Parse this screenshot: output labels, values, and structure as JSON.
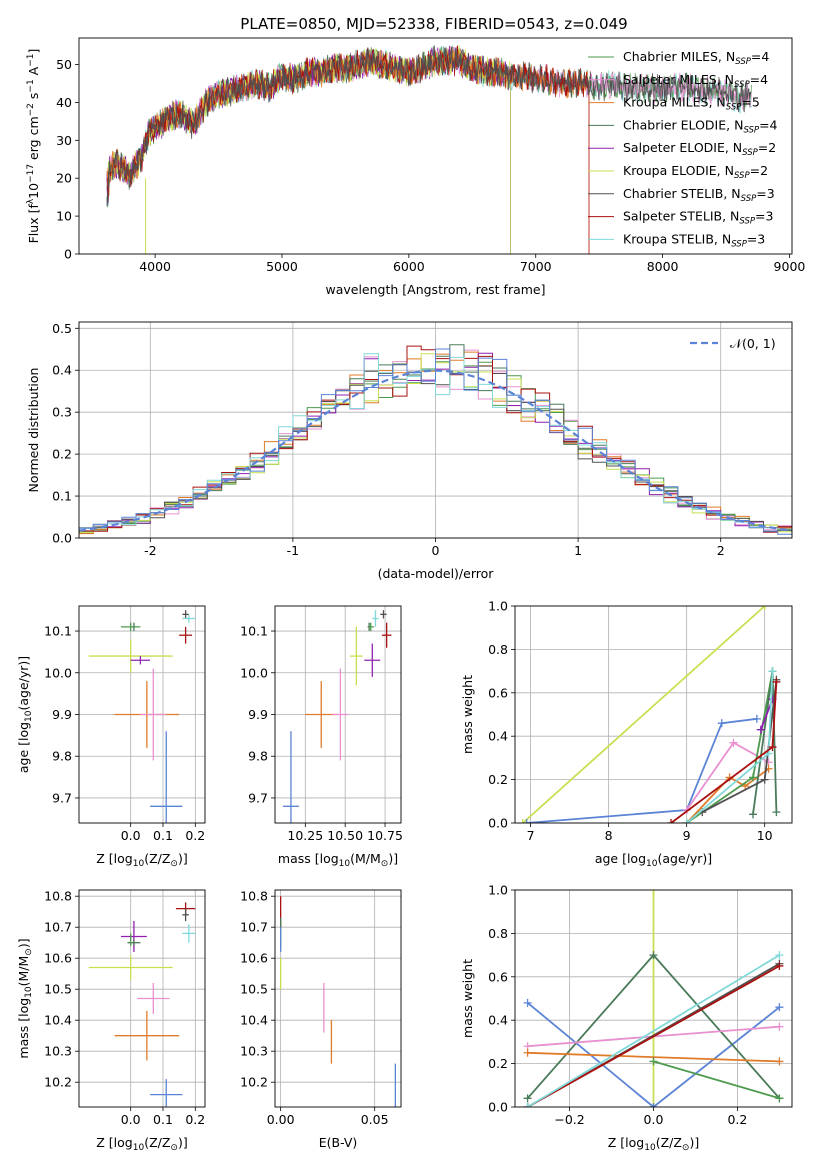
{
  "title": "PLATE=0850, MJD=52338, FIBERID=0543, z=0.049",
  "colors": {
    "chabrier_miles": "#4e9a4e",
    "salpeter_miles": "#e890d0",
    "kroupa_miles": "#e07b2a",
    "chabrier_elodie": "#4a7a5a",
    "salpeter_elodie": "#9020b0",
    "kroupa_elodie": "#c8e050",
    "chabrier_stelib": "#505050",
    "salpeter_stelib": "#aa1010",
    "kroupa_stelib": "#80d8d8",
    "blue": "#5b84d6",
    "gaussian": "#5b84d6",
    "grid": "#b0b0b0"
  },
  "chart_data": [
    {
      "id": "spectrum",
      "type": "line",
      "xlabel": "wavelength [Angstrom, rest frame]",
      "ylabel_parts": [
        "Flux [f",
        "λ",
        "10",
        "−17",
        " erg cm",
        "−2",
        " s",
        "−1",
        " A",
        "−1",
        "]"
      ],
      "xlim": [
        3400,
        9020
      ],
      "ylim": [
        0,
        57
      ],
      "xticks": [
        4000,
        5000,
        6000,
        7000,
        8000,
        9000
      ],
      "yticks": [
        0,
        10,
        20,
        30,
        40,
        50
      ],
      "grid": false,
      "legend_position": "top-right",
      "continuum": {
        "x": [
          3620,
          3700,
          3800,
          3900,
          3950,
          4000,
          4100,
          4200,
          4300,
          4400,
          4500,
          4600,
          4700,
          4800,
          4900,
          5000,
          5100,
          5200,
          5300,
          5400,
          5500,
          5600,
          5700,
          5800,
          5900,
          6000,
          6100,
          6200,
          6300,
          6400,
          6500,
          6600,
          6700,
          6800,
          6900,
          7000,
          7100,
          7200,
          7300,
          7400,
          7500,
          7600,
          7700,
          7800,
          7900,
          8000,
          8100,
          8200,
          8300,
          8400,
          8500,
          8600,
          8700
        ],
        "y": [
          22,
          24,
          21,
          26,
          32,
          33,
          36,
          37,
          34,
          40,
          42,
          43,
          44,
          45,
          44,
          47,
          46,
          48,
          48,
          49,
          49,
          50,
          51,
          50,
          49,
          48,
          49,
          51,
          51,
          51,
          49,
          48,
          48,
          47,
          47,
          46,
          46,
          45,
          45,
          45,
          44,
          45,
          44,
          44,
          44,
          43,
          44,
          44,
          43,
          43,
          43,
          41,
          42
        ]
      },
      "legend": [
        {
          "model": "Chabrier MILES",
          "n": "4",
          "color_key": "chabrier_miles",
          "end": 8700
        },
        {
          "model": "Salpeter MILES",
          "n": "4",
          "color_key": "salpeter_miles",
          "end": 8700
        },
        {
          "model": "Kroupa MILES",
          "n": "5",
          "color_key": "kroupa_miles",
          "end": 7420
        },
        {
          "model": "Chabrier ELODIE",
          "n": "4",
          "color_key": "chabrier_elodie",
          "end": 6800
        },
        {
          "model": "Salpeter ELODIE",
          "n": "2",
          "color_key": "salpeter_elodie",
          "end": 6800
        },
        {
          "model": "Kroupa ELODIE",
          "n": "2",
          "color_key": "kroupa_elodie",
          "end": 6800
        },
        {
          "model": "Chabrier STELIB",
          "n": "3",
          "color_key": "chabrier_stelib",
          "end": 8700
        },
        {
          "model": "Salpeter STELIB",
          "n": "3",
          "color_key": "salpeter_stelib",
          "end": 7420
        },
        {
          "model": "Kroupa STELIB",
          "n": "3",
          "color_key": "kroupa_stelib",
          "end": 8700
        }
      ]
    },
    {
      "id": "residuals",
      "type": "histogram",
      "xlabel": "(data-model)/error",
      "ylabel": "Normed distribution",
      "xlim": [
        -2.5,
        2.5
      ],
      "ylim": [
        0,
        0.515
      ],
      "xticks": [
        -2,
        -1,
        0,
        1,
        2
      ],
      "yticks": [
        0.0,
        0.1,
        0.2,
        0.3,
        0.4,
        0.5
      ],
      "grid": true,
      "bin_width": 0.1,
      "legend_position": "top-right",
      "gaussian_label": "𝒩(0, 1)",
      "series_color_keys": [
        "chabrier_miles",
        "salpeter_miles",
        "kroupa_miles",
        "chabrier_elodie",
        "salpeter_elodie",
        "kroupa_elodie",
        "chabrier_stelib",
        "salpeter_stelib",
        "kroupa_stelib",
        "blue"
      ]
    },
    {
      "id": "age_vs_Z",
      "type": "scatter",
      "xlabel_parts": [
        "Z [log",
        "10",
        "(Z/Z",
        "⊙",
        ")]"
      ],
      "ylabel_parts": [
        "age  [log",
        "10",
        "(age/yr)]"
      ],
      "xlim": [
        -0.16,
        0.23
      ],
      "ylim": [
        9.64,
        10.16
      ],
      "xticks": [
        0.0,
        0.1,
        0.2
      ],
      "yticks": [
        9.7,
        9.8,
        9.9,
        10.0,
        10.1
      ],
      "grid": true,
      "points": [
        {
          "x": 0.0,
          "y": 10.11,
          "xerr": 0.03,
          "yerr": 0.01,
          "color_key": "chabrier_miles"
        },
        {
          "x": 0.01,
          "y": 10.11,
          "xerr": 0.0,
          "yerr": 0.01,
          "color_key": "chabrier_elodie"
        },
        {
          "x": 0.0,
          "y": 10.04,
          "xerr": 0.13,
          "yerr": 0.04,
          "color_key": "kroupa_elodie"
        },
        {
          "x": 0.03,
          "y": 10.03,
          "xerr": 0.03,
          "yerr": 0.01,
          "color_key": "salpeter_elodie"
        },
        {
          "x": 0.17,
          "y": 10.14,
          "xerr": 0.01,
          "yerr": 0.01,
          "color_key": "chabrier_stelib"
        },
        {
          "x": 0.18,
          "y": 10.13,
          "xerr": 0.02,
          "yerr": 0.01,
          "color_key": "kroupa_stelib"
        },
        {
          "x": 0.17,
          "y": 10.09,
          "xerr": 0.02,
          "yerr": 0.02,
          "color_key": "salpeter_stelib"
        },
        {
          "x": 0.05,
          "y": 9.9,
          "xerr": 0.1,
          "yerr": 0.08,
          "color_key": "kroupa_miles"
        },
        {
          "x": 0.07,
          "y": 9.9,
          "xerr": 0.04,
          "yerr": 0.11,
          "color_key": "salpeter_miles"
        },
        {
          "x": 0.11,
          "y": 9.68,
          "xerr": 0.05,
          "yerr": 0.18,
          "color_key": "blue"
        }
      ]
    },
    {
      "id": "age_vs_mass",
      "type": "scatter",
      "xlabel_parts": [
        "mass [log",
        "10",
        "(M/M",
        "⊙",
        ")]"
      ],
      "xlim": [
        10.06,
        10.85
      ],
      "ylim": [
        9.64,
        10.16
      ],
      "xticks": [
        10.25,
        10.5,
        10.75
      ],
      "xtick_labels": [
        "10.25",
        "10.50",
        "10.75"
      ],
      "yticks": [
        9.7,
        9.8,
        9.9,
        10.0,
        10.1
      ],
      "grid": true,
      "points": [
        {
          "x": 10.66,
          "y": 10.11,
          "xerr": 0.02,
          "yerr": 0.01,
          "color_key": "chabrier_miles"
        },
        {
          "x": 10.65,
          "y": 10.11,
          "xerr": 0.0,
          "yerr": 0.01,
          "color_key": "chabrier_elodie"
        },
        {
          "x": 10.57,
          "y": 10.04,
          "xerr": 0.04,
          "yerr": 0.07,
          "color_key": "kroupa_elodie"
        },
        {
          "x": 10.67,
          "y": 10.03,
          "xerr": 0.05,
          "yerr": 0.04,
          "color_key": "salpeter_elodie"
        },
        {
          "x": 10.74,
          "y": 10.14,
          "xerr": 0.02,
          "yerr": 0.01,
          "color_key": "chabrier_stelib"
        },
        {
          "x": 10.69,
          "y": 10.13,
          "xerr": 0.02,
          "yerr": 0.02,
          "color_key": "kroupa_stelib"
        },
        {
          "x": 10.76,
          "y": 10.09,
          "xerr": 0.03,
          "yerr": 0.03,
          "color_key": "salpeter_stelib"
        },
        {
          "x": 10.35,
          "y": 9.9,
          "xerr": 0.1,
          "yerr": 0.08,
          "color_key": "kroupa_miles"
        },
        {
          "x": 10.47,
          "y": 9.9,
          "xerr": 0.05,
          "yerr": 0.11,
          "color_key": "salpeter_miles"
        },
        {
          "x": 10.16,
          "y": 9.68,
          "xerr": 0.05,
          "yerr": 0.18,
          "color_key": "blue"
        }
      ]
    },
    {
      "id": "mass_weight_vs_age",
      "type": "line",
      "xlabel_parts": [
        "age  [log",
        "10",
        "(age/yr)]"
      ],
      "ylabel": "mass weight",
      "xlim": [
        6.8,
        10.35
      ],
      "ylim": [
        0,
        1.0
      ],
      "xticks": [
        7,
        8,
        9,
        10
      ],
      "yticks": [
        0.0,
        0.2,
        0.4,
        0.6,
        0.8,
        1.0
      ],
      "grid": true,
      "series": [
        {
          "color_key": "kroupa_elodie",
          "x": [
            6.9,
            10.0
          ],
          "y": [
            0.0,
            1.0
          ]
        },
        {
          "color_key": "blue",
          "x": [
            6.95,
            9.0,
            9.45,
            9.9
          ],
          "y": [
            0.0,
            0.06,
            0.46,
            0.48
          ]
        },
        {
          "color_key": "salpeter_miles",
          "x": [
            9.0,
            9.6,
            9.95,
            10.05
          ],
          "y": [
            0.06,
            0.37,
            0.3,
            0.28
          ]
        },
        {
          "color_key": "kroupa_miles",
          "x": [
            9.0,
            9.55,
            9.75,
            10.05
          ],
          "y": [
            0.0,
            0.21,
            0.17,
            0.25
          ]
        },
        {
          "color_key": "chabrier_miles",
          "x": [
            9.0,
            9.85,
            10.1
          ],
          "y": [
            0.0,
            0.21,
            0.7
          ]
        },
        {
          "color_key": "chabrier_elodie",
          "x": [
            9.85,
            10.1,
            10.15
          ],
          "y": [
            0.04,
            0.7,
            0.05
          ]
        },
        {
          "color_key": "salpeter_elodie",
          "x": [
            9.95,
            10.1
          ],
          "y": [
            0.43,
            0.57
          ]
        },
        {
          "color_key": "chabrier_stelib",
          "x": [
            9.2,
            10.0,
            10.15
          ],
          "y": [
            0.05,
            0.2,
            0.66
          ]
        },
        {
          "color_key": "kroupa_stelib",
          "x": [
            9.0,
            10.05,
            10.1
          ],
          "y": [
            0.0,
            0.32,
            0.7
          ]
        },
        {
          "color_key": "salpeter_stelib",
          "x": [
            8.8,
            10.1,
            10.15
          ],
          "y": [
            0.0,
            0.35,
            0.65
          ]
        }
      ]
    },
    {
      "id": "mass_vs_Z",
      "type": "scatter",
      "xlabel_parts": [
        "Z [log",
        "10",
        "(Z/Z",
        "⊙",
        ")]"
      ],
      "ylabel_parts": [
        "mass [log",
        "10",
        "(M/M",
        "⊙",
        ")]"
      ],
      "xlim": [
        -0.16,
        0.23
      ],
      "ylim": [
        10.12,
        10.82
      ],
      "xticks": [
        0.0,
        0.1,
        0.2
      ],
      "yticks": [
        10.2,
        10.3,
        10.4,
        10.5,
        10.6,
        10.7,
        10.8
      ],
      "grid": true,
      "points": [
        {
          "x": 0.17,
          "y": 10.76,
          "xerr": 0.03,
          "yerr": 0.02,
          "color_key": "salpeter_stelib"
        },
        {
          "x": 0.17,
          "y": 10.74,
          "xerr": 0.01,
          "yerr": 0.02,
          "color_key": "chabrier_stelib"
        },
        {
          "x": 0.18,
          "y": 10.68,
          "xerr": 0.02,
          "yerr": 0.03,
          "color_key": "kroupa_stelib"
        },
        {
          "x": 0.01,
          "y": 10.67,
          "xerr": 0.04,
          "yerr": 0.05,
          "color_key": "salpeter_elodie"
        },
        {
          "x": 0.01,
          "y": 10.65,
          "xerr": 0.02,
          "yerr": 0.01,
          "color_key": "chabrier_elodie"
        },
        {
          "x": 0.0,
          "y": 10.66,
          "xerr": 0.0,
          "yerr": 0.02,
          "color_key": "chabrier_miles"
        },
        {
          "x": 0.0,
          "y": 10.57,
          "xerr": 0.13,
          "yerr": 0.04,
          "color_key": "kroupa_elodie"
        },
        {
          "x": 0.07,
          "y": 10.47,
          "xerr": 0.05,
          "yerr": 0.05,
          "color_key": "salpeter_miles"
        },
        {
          "x": 0.05,
          "y": 10.35,
          "xerr": 0.1,
          "yerr": 0.08,
          "color_key": "kroupa_miles"
        },
        {
          "x": 0.11,
          "y": 10.16,
          "xerr": 0.05,
          "yerr": 0.05,
          "color_key": "blue"
        }
      ]
    },
    {
      "id": "mass_vs_ebv",
      "type": "scatter",
      "xlabel": "E(B-V)",
      "xlim": [
        -0.003,
        0.064
      ],
      "ylim": [
        10.12,
        10.82
      ],
      "xticks": [
        0.0,
        0.05
      ],
      "xtick_labels": [
        "0.00",
        "0.05"
      ],
      "yticks": [
        10.2,
        10.3,
        10.4,
        10.5,
        10.6,
        10.7,
        10.8
      ],
      "grid": true,
      "points": [
        {
          "x": 0.0,
          "y": 10.75,
          "yerr": 0.05,
          "color_key": "salpeter_stelib"
        },
        {
          "x": 0.0,
          "y": 10.68,
          "yerr": 0.05,
          "color_key": "chabrier_elodie"
        },
        {
          "x": 0.0,
          "y": 10.66,
          "yerr": 0.04,
          "color_key": "blue"
        },
        {
          "x": 0.0,
          "y": 10.55,
          "yerr": 0.05,
          "color_key": "kroupa_elodie"
        },
        {
          "x": 0.023,
          "y": 10.44,
          "yerr": 0.08,
          "color_key": "salpeter_miles"
        },
        {
          "x": 0.027,
          "y": 10.33,
          "yerr": 0.07,
          "color_key": "kroupa_miles"
        },
        {
          "x": 0.061,
          "y": 10.18,
          "yerr": 0.08,
          "color_key": "blue"
        }
      ]
    },
    {
      "id": "mass_weight_vs_Z",
      "type": "line",
      "xlabel_parts": [
        "Z [log",
        "10",
        "(Z/Z",
        "⊙",
        ")]"
      ],
      "ylabel": "mass weight",
      "xlim": [
        -0.33,
        0.33
      ],
      "ylim": [
        0,
        1.0
      ],
      "xticks": [
        -0.2,
        0.0,
        0.2
      ],
      "xtick_labels": [
        "−0.2",
        "0.0",
        "0.2"
      ],
      "yticks": [
        0.0,
        0.2,
        0.4,
        0.6,
        0.8,
        1.0
      ],
      "grid": true,
      "series": [
        {
          "color_key": "kroupa_elodie",
          "x": [
            0.0,
            0.0
          ],
          "y": [
            0.0,
            1.0
          ]
        },
        {
          "color_key": "blue",
          "x": [
            -0.3,
            0.0,
            0.3
          ],
          "y": [
            0.48,
            0.0,
            0.46
          ]
        },
        {
          "color_key": "chabrier_elodie",
          "x": [
            -0.3,
            0.0,
            0.3
          ],
          "y": [
            0.04,
            0.7,
            0.04
          ]
        },
        {
          "color_key": "salpeter_miles",
          "x": [
            -0.3,
            0.3
          ],
          "y": [
            0.28,
            0.37
          ]
        },
        {
          "color_key": "kroupa_miles",
          "x": [
            -0.3,
            0.3
          ],
          "y": [
            0.25,
            0.21
          ]
        },
        {
          "color_key": "chabrier_miles",
          "x": [
            0.0,
            0.3
          ],
          "y": [
            0.21,
            0.04
          ]
        },
        {
          "color_key": "chabrier_stelib",
          "x": [
            -0.3,
            0.3
          ],
          "y": [
            0.0,
            0.66
          ]
        },
        {
          "color_key": "salpeter_stelib",
          "x": [
            -0.3,
            0.3
          ],
          "y": [
            0.0,
            0.65
          ]
        },
        {
          "color_key": "kroupa_stelib",
          "x": [
            -0.3,
            0.3
          ],
          "y": [
            0.0,
            0.7
          ]
        }
      ]
    }
  ]
}
